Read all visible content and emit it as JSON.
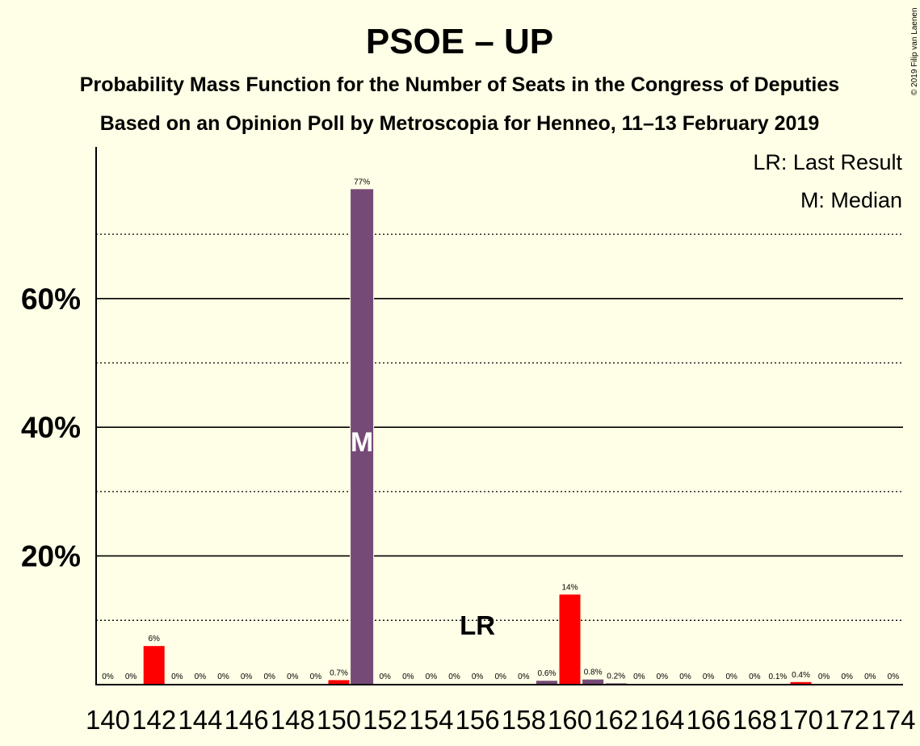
{
  "title": "PSOE – UP",
  "subtitle1": "Probability Mass Function for the Number of Seats in the Congress of Deputies",
  "subtitle2": "Based on an Opinion Poll by Metroscopia for Henneo, 11–13 February 2019",
  "copyright": "© 2019 Filip van Laenen",
  "legend": {
    "last_result": "LR: Last Result",
    "median": "M: Median"
  },
  "markers": {
    "median_label": "M",
    "median_seat": 151,
    "last_result_label": "LR",
    "last_result_seat": 156
  },
  "colors": {
    "red": "#FF0000",
    "purple": "#764A77",
    "background": "#FFFEE6"
  },
  "chart_data": {
    "type": "bar",
    "x": [
      140,
      141,
      142,
      143,
      144,
      145,
      146,
      147,
      148,
      149,
      150,
      151,
      152,
      153,
      154,
      155,
      156,
      157,
      158,
      159,
      160,
      161,
      162,
      163,
      164,
      165,
      166,
      167,
      168,
      169,
      170,
      171,
      172,
      173,
      174
    ],
    "values": [
      0,
      0,
      6,
      0,
      0,
      0,
      0,
      0,
      0,
      0,
      0.7,
      77,
      0,
      0,
      0,
      0,
      0,
      0,
      0,
      0.6,
      14,
      0.8,
      0.2,
      0,
      0,
      0,
      0,
      0,
      0,
      0.1,
      0.4,
      0,
      0,
      0,
      0
    ],
    "labels": [
      "0%",
      "0%",
      "6%",
      "0%",
      "0%",
      "0%",
      "0%",
      "0%",
      "0%",
      "0%",
      "0.7%",
      "77%",
      "0%",
      "0%",
      "0%",
      "0%",
      "0%",
      "0%",
      "0%",
      "0.6%",
      "14%",
      "0.8%",
      "0.2%",
      "0%",
      "0%",
      "0%",
      "0%",
      "0%",
      "0%",
      "0.1%",
      "0.4%",
      "0%",
      "0%",
      "0%",
      "0%"
    ],
    "bar_colors": [
      "red",
      "red",
      "red",
      "red",
      "red",
      "red",
      "red",
      "red",
      "red",
      "red",
      "red",
      "purple",
      "red",
      "red",
      "red",
      "red",
      "red",
      "red",
      "red",
      "purple",
      "red",
      "purple",
      "purple",
      "purple",
      "purple",
      "purple",
      "purple",
      "purple",
      "purple",
      "red",
      "red",
      "red",
      "red",
      "red",
      "red"
    ],
    "xtick_labels": [
      "140",
      "142",
      "144",
      "146",
      "148",
      "150",
      "152",
      "154",
      "156",
      "158",
      "160",
      "162",
      "164",
      "166",
      "168",
      "170",
      "172",
      "174"
    ],
    "ytick_labels": [
      "20%",
      "40%",
      "60%"
    ],
    "ytick_values": [
      20,
      40,
      60
    ],
    "minor_grid": [
      10,
      30,
      50,
      70
    ],
    "ylim": [
      0,
      84
    ],
    "grid": true,
    "legend_position": "top-right"
  }
}
